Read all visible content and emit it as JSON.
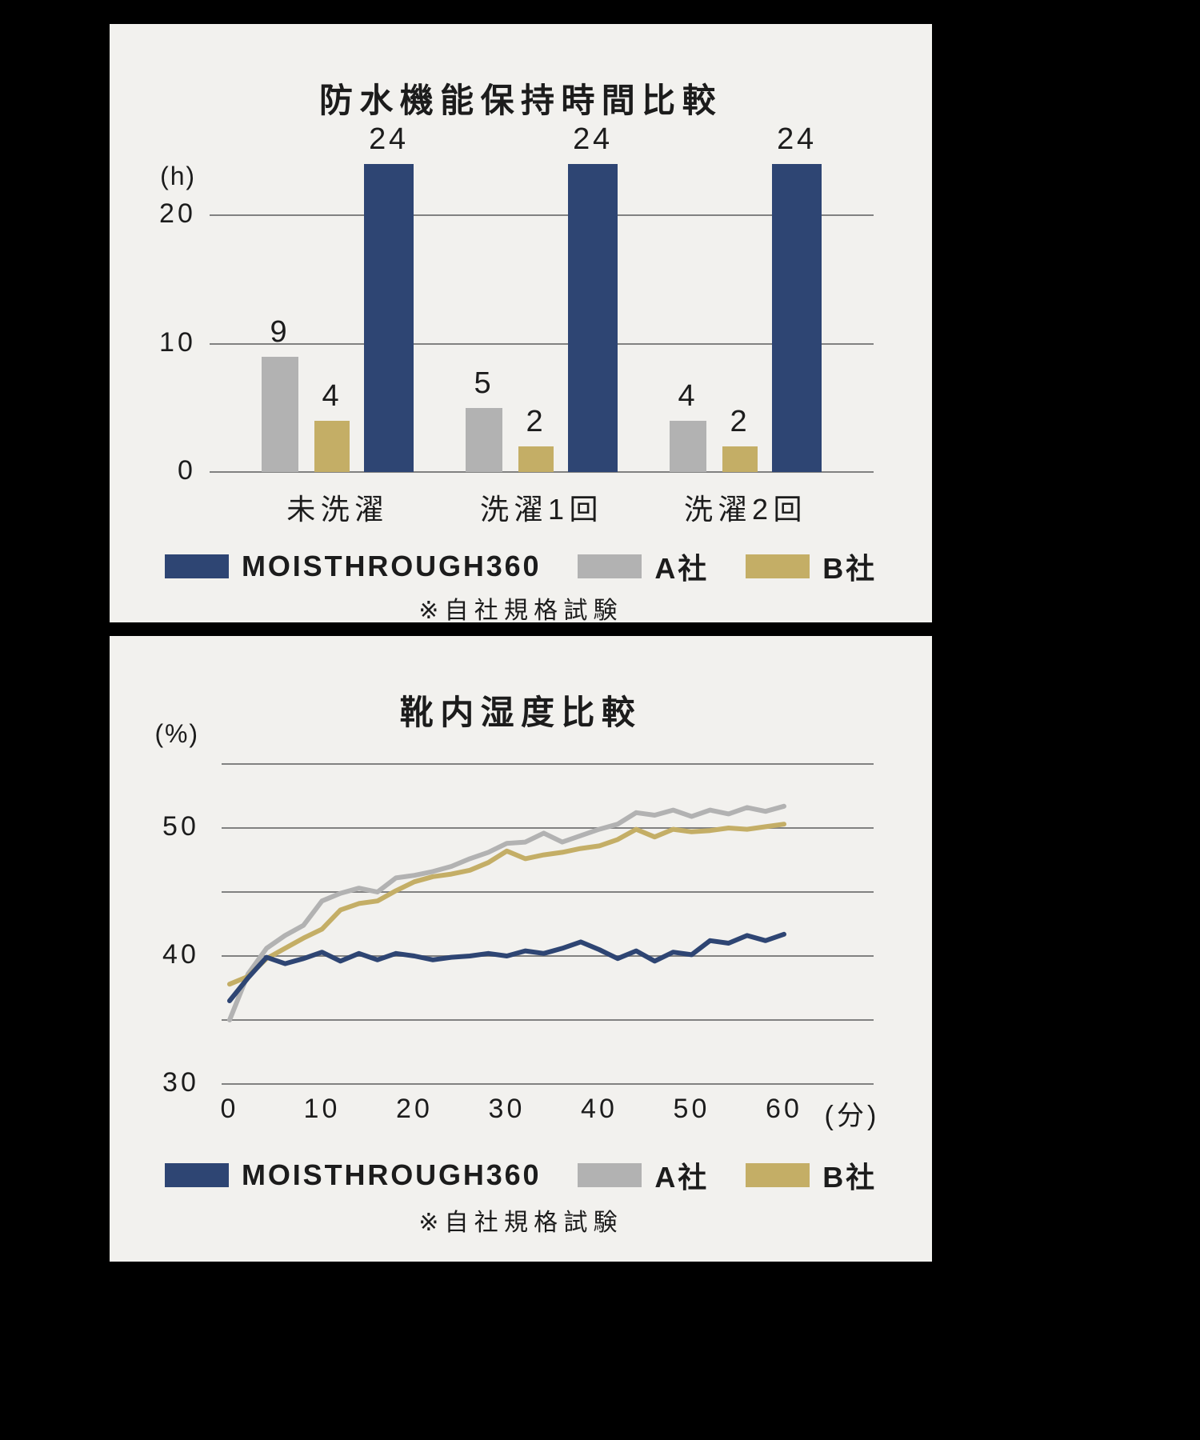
{
  "page": {
    "background": "#000000",
    "panel_background": "#f2f1ee"
  },
  "colors": {
    "navy": "#2e4573",
    "gray": "#b2b2b2",
    "gold": "#c4ae66",
    "grid": "#818181",
    "text": "#1c1c1c"
  },
  "chart_data": [
    {
      "type": "bar",
      "title": "防水機能保持時間比較",
      "y_unit": "(h)",
      "yticks": [
        20,
        10,
        0
      ],
      "ylim": [
        0,
        24
      ],
      "categories": [
        "未洗濯",
        "洗濯1回",
        "洗濯2回"
      ],
      "series": [
        {
          "id": "company-a",
          "name": "A社",
          "color_key": "gray",
          "values": [
            9,
            5,
            4
          ]
        },
        {
          "id": "company-b",
          "name": "B社",
          "color_key": "gold",
          "values": [
            4,
            2,
            2
          ]
        },
        {
          "id": "moisthrough360",
          "name": "MOISTHROUGH360",
          "color_key": "navy",
          "values": [
            24,
            24,
            24
          ]
        }
      ],
      "legend": [
        {
          "id": "moisthrough360",
          "label": "MOISTHROUGH360",
          "color_key": "navy"
        },
        {
          "id": "company-a",
          "label": "A社",
          "color_key": "gray"
        },
        {
          "id": "company-b",
          "label": "B社",
          "color_key": "gold"
        }
      ],
      "footnote": "※自社規格試験"
    },
    {
      "type": "line",
      "title": "靴内湿度比較",
      "y_unit": "(%)",
      "yticks": [
        50,
        40,
        30
      ],
      "ylim": [
        30,
        55
      ],
      "xticks": [
        0,
        10,
        20,
        30,
        40,
        50,
        60
      ],
      "x_unit": "(分)",
      "x_step_min": 2,
      "series": [
        {
          "id": "company-a",
          "name": "A社",
          "color_key": "gray",
          "values": [
            35.0,
            38.6,
            40.6,
            41.6,
            42.4,
            44.3,
            44.9,
            45.3,
            45.0,
            46.1,
            46.3,
            46.6,
            47.0,
            47.6,
            48.1,
            48.8,
            48.9,
            49.6,
            48.9,
            49.4,
            49.9,
            50.3,
            51.2,
            51.0,
            51.4,
            50.9,
            51.4,
            51.1,
            51.6,
            51.3,
            51.7
          ]
        },
        {
          "id": "company-b",
          "name": "B社",
          "color_key": "gold",
          "values": [
            37.8,
            38.4,
            39.8,
            40.6,
            41.4,
            42.1,
            43.6,
            44.1,
            44.3,
            45.1,
            45.8,
            46.2,
            46.4,
            46.7,
            47.3,
            48.2,
            47.6,
            47.9,
            48.1,
            48.4,
            48.6,
            49.1,
            49.9,
            49.3,
            49.9,
            49.7,
            49.8,
            50.0,
            49.9,
            50.1,
            50.3
          ]
        },
        {
          "id": "moisthrough360",
          "name": "MOISTHROUGH360",
          "color_key": "navy",
          "values": [
            36.5,
            38.3,
            39.9,
            39.4,
            39.8,
            40.3,
            39.6,
            40.2,
            39.7,
            40.2,
            40.0,
            39.7,
            39.9,
            40.0,
            40.2,
            40.0,
            40.4,
            40.2,
            40.6,
            41.1,
            40.5,
            39.8,
            40.4,
            39.6,
            40.3,
            40.1,
            41.2,
            41.0,
            41.6,
            41.2,
            41.7
          ]
        }
      ],
      "legend": [
        {
          "id": "moisthrough360",
          "label": "MOISTHROUGH360",
          "color_key": "navy"
        },
        {
          "id": "company-a",
          "label": "A社",
          "color_key": "gray"
        },
        {
          "id": "company-b",
          "label": "B社",
          "color_key": "gold"
        }
      ],
      "footnote": "※自社規格試験"
    }
  ]
}
